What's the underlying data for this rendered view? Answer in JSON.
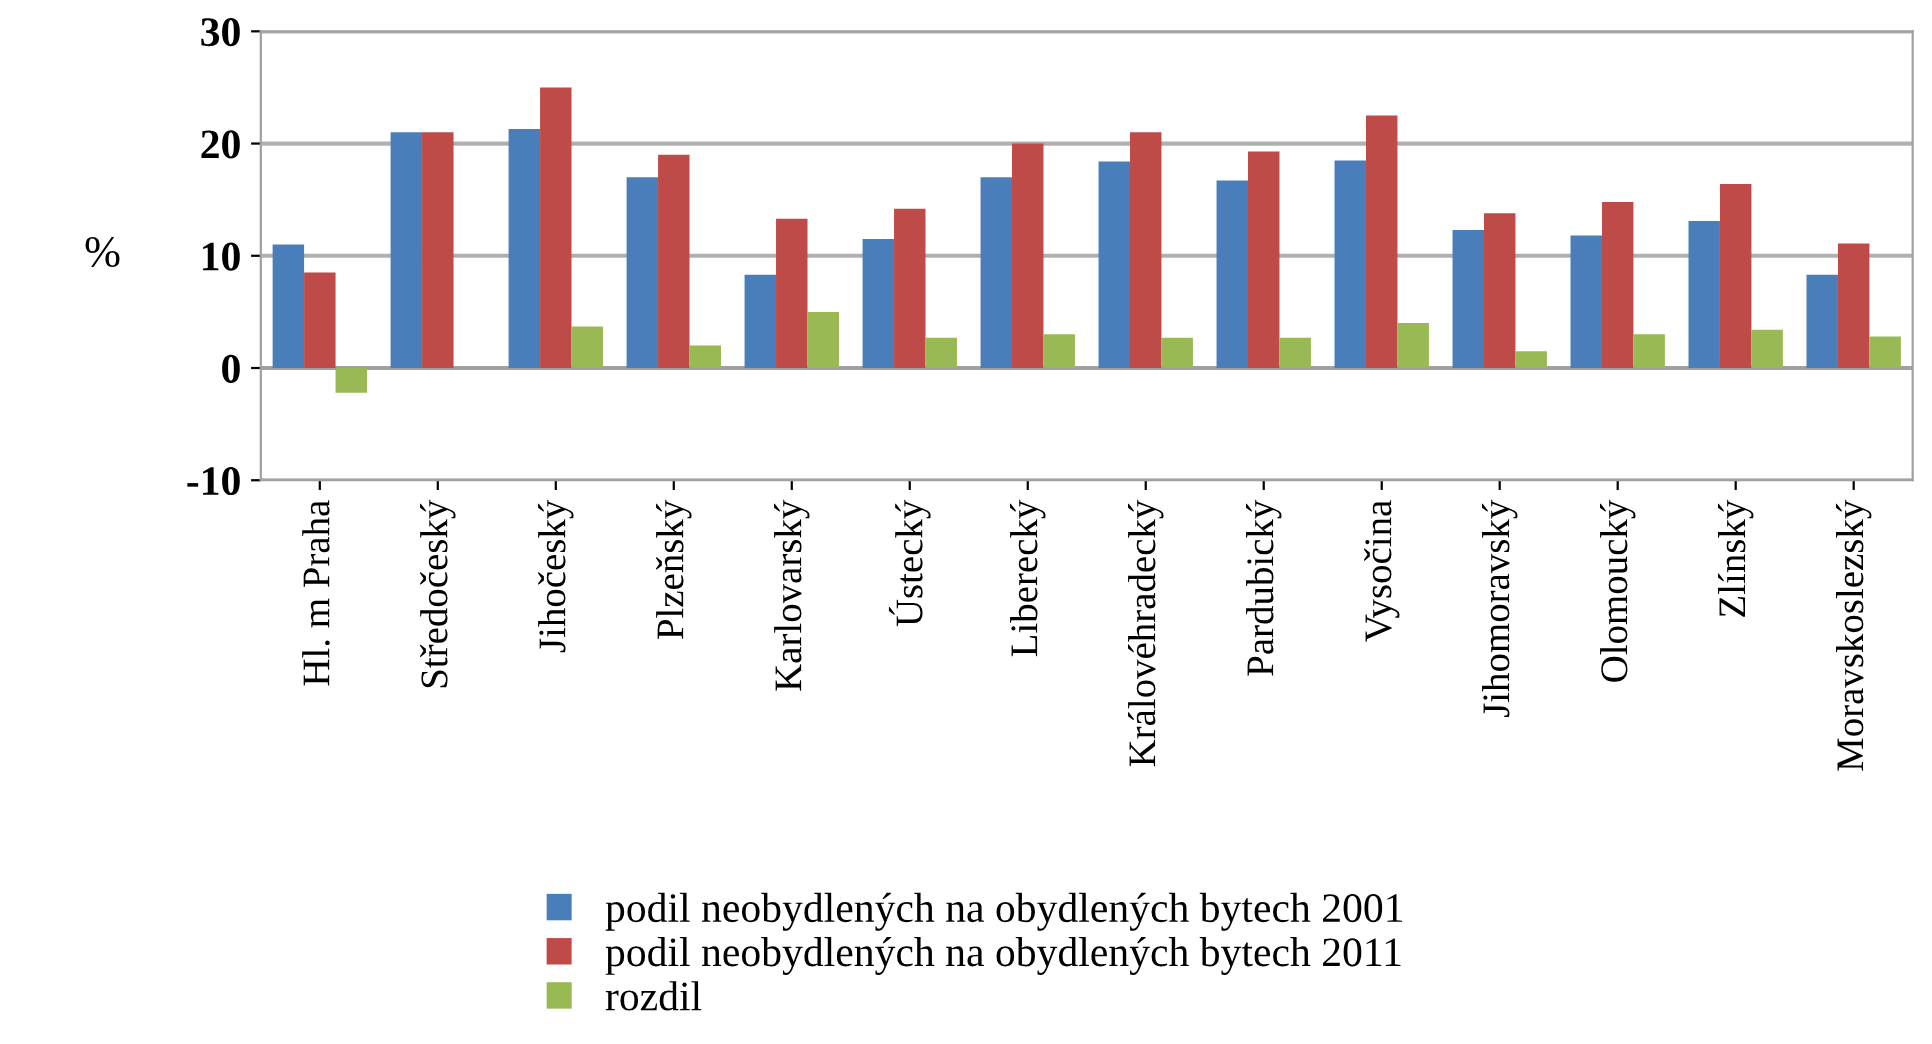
{
  "chart_data": {
    "type": "bar",
    "ylabel": "%",
    "categories": [
      "Hl. m Praha",
      "Středočeský",
      "Jihočeský",
      "Plzeňský",
      "Karlovarský",
      "Ústecký",
      "Liberecký",
      "Královéhradecký",
      "Pardubický",
      "Vysočina",
      "Jihomoravský",
      "Olomoucký",
      "Zlínský",
      "Moravskoslezský"
    ],
    "series": [
      {
        "name": "podil neobydlených na obydlených bytech 2001",
        "color": "#4a7ebb",
        "values": [
          11,
          21,
          21.3,
          17,
          8.3,
          11.5,
          17,
          18.4,
          16.7,
          18.5,
          12.3,
          11.8,
          13.1,
          8.3
        ]
      },
      {
        "name": "podil neobydlených na obydlených bytech 2011",
        "color": "#be4b48",
        "values": [
          8.5,
          21,
          25,
          19,
          13.3,
          14.2,
          20,
          21,
          19.3,
          22.5,
          13.8,
          14.8,
          16.4,
          11.1
        ]
      },
      {
        "name": "rozdil",
        "color": "#98b954",
        "values": [
          -2.2,
          0,
          3.7,
          2,
          5,
          2.7,
          3,
          2.7,
          2.7,
          4,
          1.5,
          3,
          3.4,
          2.8
        ]
      }
    ],
    "ylim": [
      -10,
      30
    ],
    "yticks": [
      -10,
      0,
      10,
      20,
      30
    ],
    "grid": "y",
    "legend": "bottom"
  }
}
